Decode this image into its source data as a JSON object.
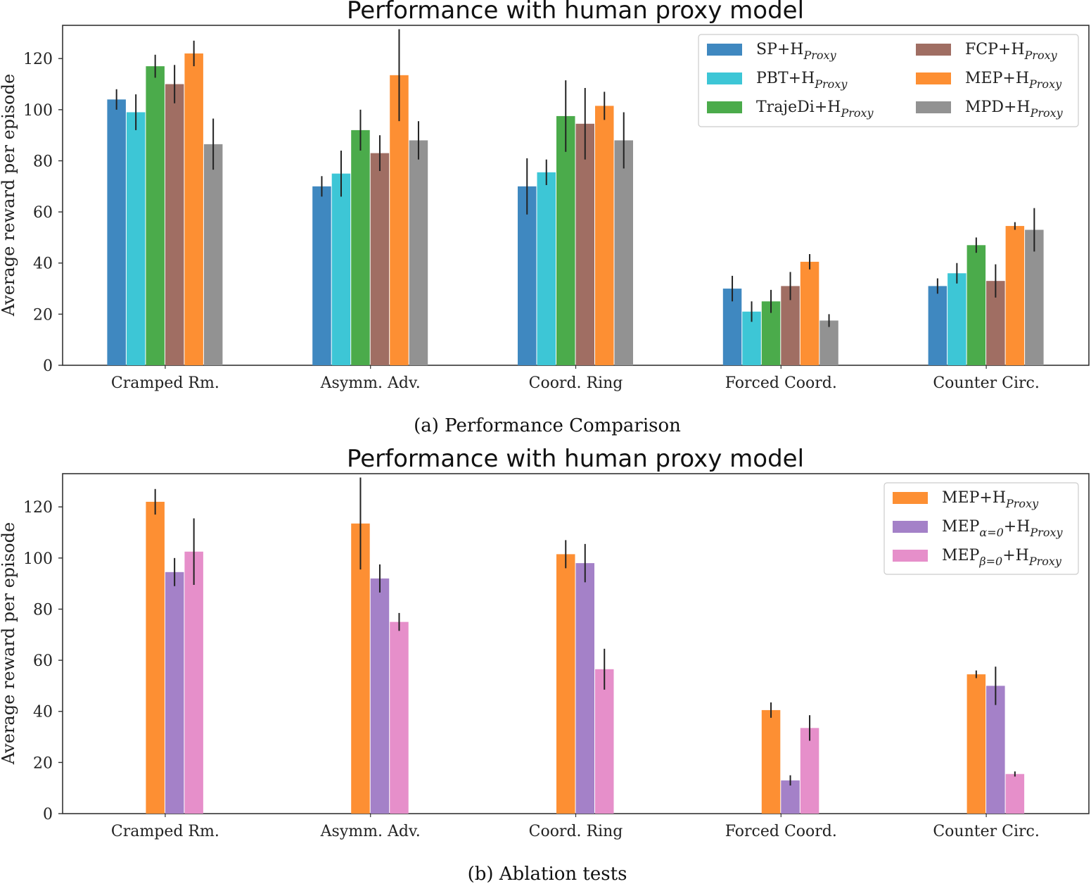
{
  "chart_data": [
    {
      "type": "bar",
      "title": "Performance with human proxy model",
      "caption": "(a) Performance Comparison",
      "ylabel": "Average reward per episode",
      "xlabel": "",
      "ylim": [
        0,
        133
      ],
      "yticks": [
        0,
        20,
        40,
        60,
        80,
        100,
        120
      ],
      "grid": false,
      "legend_position": "top-right",
      "legend_columns": 2,
      "categories": [
        "Cramped Rm.",
        "Asymm. Adv.",
        "Coord. Ring",
        "Forced Coord.",
        "Counter Circ."
      ],
      "series": [
        {
          "name": "SP+H",
          "sub": "Proxy",
          "color": "#3f88c0",
          "values": [
            104,
            70,
            70,
            30,
            31
          ],
          "err": [
            4,
            4,
            11,
            5,
            3
          ]
        },
        {
          "name": "PBT+H",
          "sub": "Proxy",
          "color": "#3dc6d6",
          "values": [
            99,
            75,
            75.5,
            21,
            36
          ],
          "err": [
            7,
            9,
            5,
            4,
            4
          ]
        },
        {
          "name": "TrajeDi+H",
          "sub": "Proxy",
          "color": "#4bab4b",
          "values": [
            117,
            92,
            97.5,
            25,
            47
          ],
          "err": [
            4.5,
            8,
            14,
            4.5,
            3
          ]
        },
        {
          "name": "FCP+H",
          "sub": "Proxy",
          "color": "#a06e63",
          "values": [
            110,
            83,
            94.5,
            31,
            33
          ],
          "err": [
            7.5,
            7,
            14,
            5.5,
            6.5
          ]
        },
        {
          "name": "MEP+H",
          "sub": "Proxy",
          "color": "#fd8f33",
          "values": [
            122,
            113.5,
            101.5,
            40.5,
            54.5
          ],
          "err": [
            5,
            18,
            5.5,
            3,
            1.5
          ]
        },
        {
          "name": "MPD+H",
          "sub": "Proxy",
          "color": "#929292",
          "values": [
            86.5,
            88,
            88,
            17.5,
            53
          ],
          "err": [
            10,
            7.5,
            11,
            2.5,
            8.5
          ]
        }
      ]
    },
    {
      "type": "bar",
      "title": "Performance with human proxy model",
      "caption": "(b) Ablation tests",
      "ylabel": "Average reward per episode",
      "xlabel": "",
      "ylim": [
        0,
        133
      ],
      "yticks": [
        0,
        20,
        40,
        60,
        80,
        100,
        120
      ],
      "grid": false,
      "legend_position": "top-right",
      "legend_columns": 1,
      "categories": [
        "Cramped Rm.",
        "Asymm. Adv.",
        "Coord. Ring",
        "Forced Coord.",
        "Counter Circ."
      ],
      "slot_offset": 2,
      "series": [
        {
          "name": "MEP+H",
          "sub": "Proxy",
          "color": "#fd8f33",
          "values": [
            122,
            113.5,
            101.5,
            40.5,
            54.5
          ],
          "err": [
            5,
            18,
            5.5,
            3,
            1.5
          ]
        },
        {
          "name": "MEP",
          "sub": "α=0",
          "name2": "+H",
          "sub2": "Proxy",
          "color": "#a481c8",
          "values": [
            94.5,
            92,
            98,
            13,
            50
          ],
          "err": [
            5.5,
            5.5,
            7.5,
            2,
            7.5
          ]
        },
        {
          "name": "MEP",
          "sub": "β=0",
          "name2": "+H",
          "sub2": "Proxy",
          "color": "#e68fca",
          "values": [
            102.5,
            75,
            56.5,
            33.5,
            15.5
          ],
          "err": [
            13,
            3.5,
            8,
            5,
            1
          ]
        }
      ]
    }
  ]
}
